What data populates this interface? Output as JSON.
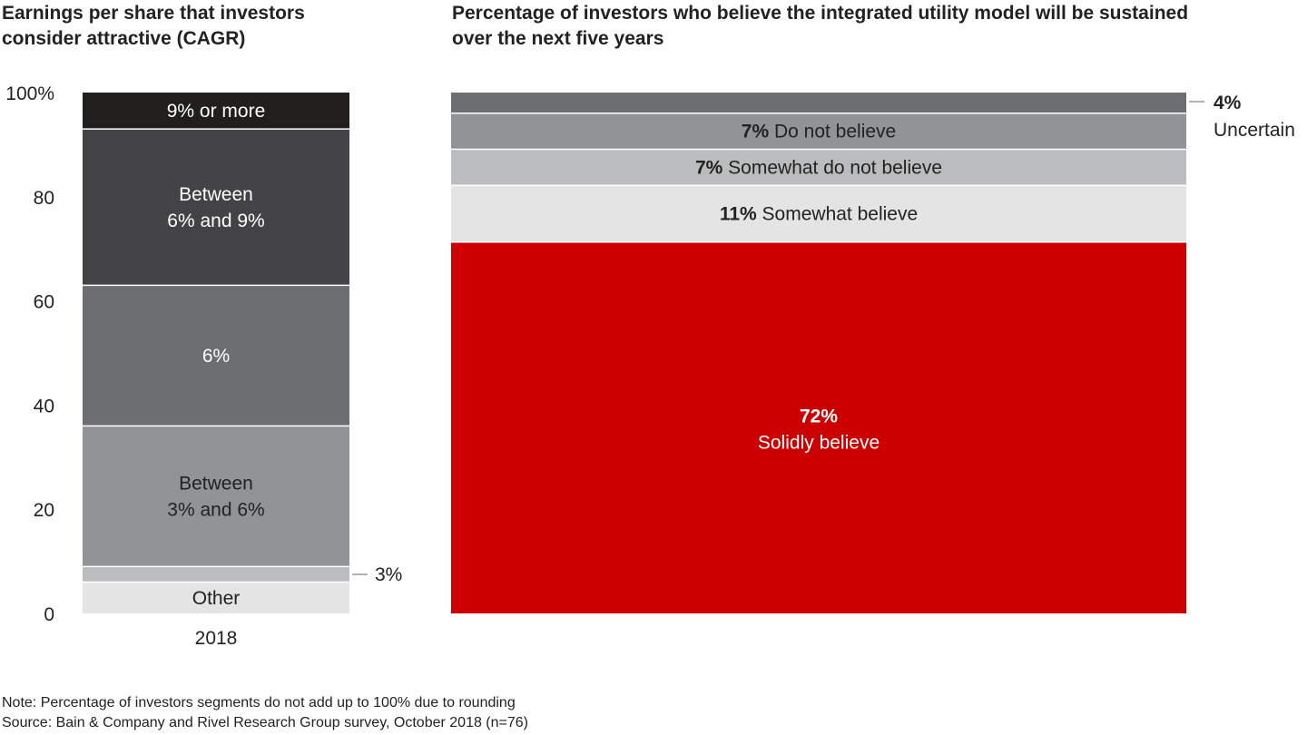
{
  "chart_data": [
    {
      "type": "bar",
      "stacked": true,
      "title": "Earnings per share that investors consider attractive (CAGR)",
      "categories": [
        "2018"
      ],
      "ylim": [
        0,
        100
      ],
      "yticks": [
        "0",
        "20",
        "40",
        "60",
        "80",
        "100%"
      ],
      "ytick_values": [
        0,
        20,
        40,
        60,
        80,
        100
      ],
      "grid": false,
      "series": [
        {
          "name": "Other",
          "values": [
            6
          ],
          "label": [
            "Other"
          ],
          "color": "#e3e4e3",
          "text_color": "#222222"
        },
        {
          "name": "3%",
          "values": [
            3
          ],
          "label": [
            "3%"
          ],
          "color": "#bbbcbd",
          "text_color": "#222222",
          "callout": true
        },
        {
          "name": "Between 3% and 6%",
          "values": [
            27
          ],
          "label": [
            "Between",
            "3% and 6%"
          ],
          "color": "#929396",
          "text_color": "#222222"
        },
        {
          "name": "6%",
          "values": [
            27
          ],
          "label": [
            "6%"
          ],
          "color": "#6d6e71",
          "text_color": "#ffffff"
        },
        {
          "name": "Between 6% and 9%",
          "values": [
            30
          ],
          "label": [
            "Between",
            "6% and 9%"
          ],
          "color": "#434345",
          "text_color": "#ffffff"
        },
        {
          "name": "9% or more",
          "values": [
            7
          ],
          "label": [
            "9% or more"
          ],
          "color": "#211f1d",
          "text_color": "#ffffff"
        }
      ]
    },
    {
      "type": "bar",
      "stacked": true,
      "title": "Percentage of investors who believe the integrated utility model will be sustained over the next five years",
      "series": [
        {
          "name": "Solidly believe",
          "value": 72,
          "pct": "72%",
          "color": "#cc0000",
          "text_color": "#ffffff",
          "two_line": true
        },
        {
          "name": "Somewhat believe",
          "value": 11,
          "pct": "11%",
          "color": "#e3e4e3",
          "text_color": "#222222"
        },
        {
          "name": "Somewhat do not believe",
          "value": 7,
          "pct": "7%",
          "color": "#bbbcbd",
          "text_color": "#222222"
        },
        {
          "name": "Do not believe",
          "value": 7,
          "pct": "7%",
          "color": "#929396",
          "text_color": "#222222"
        },
        {
          "name": "Uncertain",
          "value": 4,
          "pct": "4%",
          "color": "#6d6e71",
          "text_color": "#222222",
          "callout": true
        }
      ]
    }
  ],
  "titles": {
    "left": [
      "Earnings per share that investors",
      "consider attractive (CAGR)"
    ],
    "right": [
      "Percentage of investors who believe the integrated utility model will be sustained",
      "over the next five years"
    ]
  },
  "footer": {
    "note": "Note: Percentage of investors segments do not add up to 100% due to rounding",
    "source": "Source: Bain & Company and Rivel Research Group survey, October 2018 (n=76)"
  }
}
